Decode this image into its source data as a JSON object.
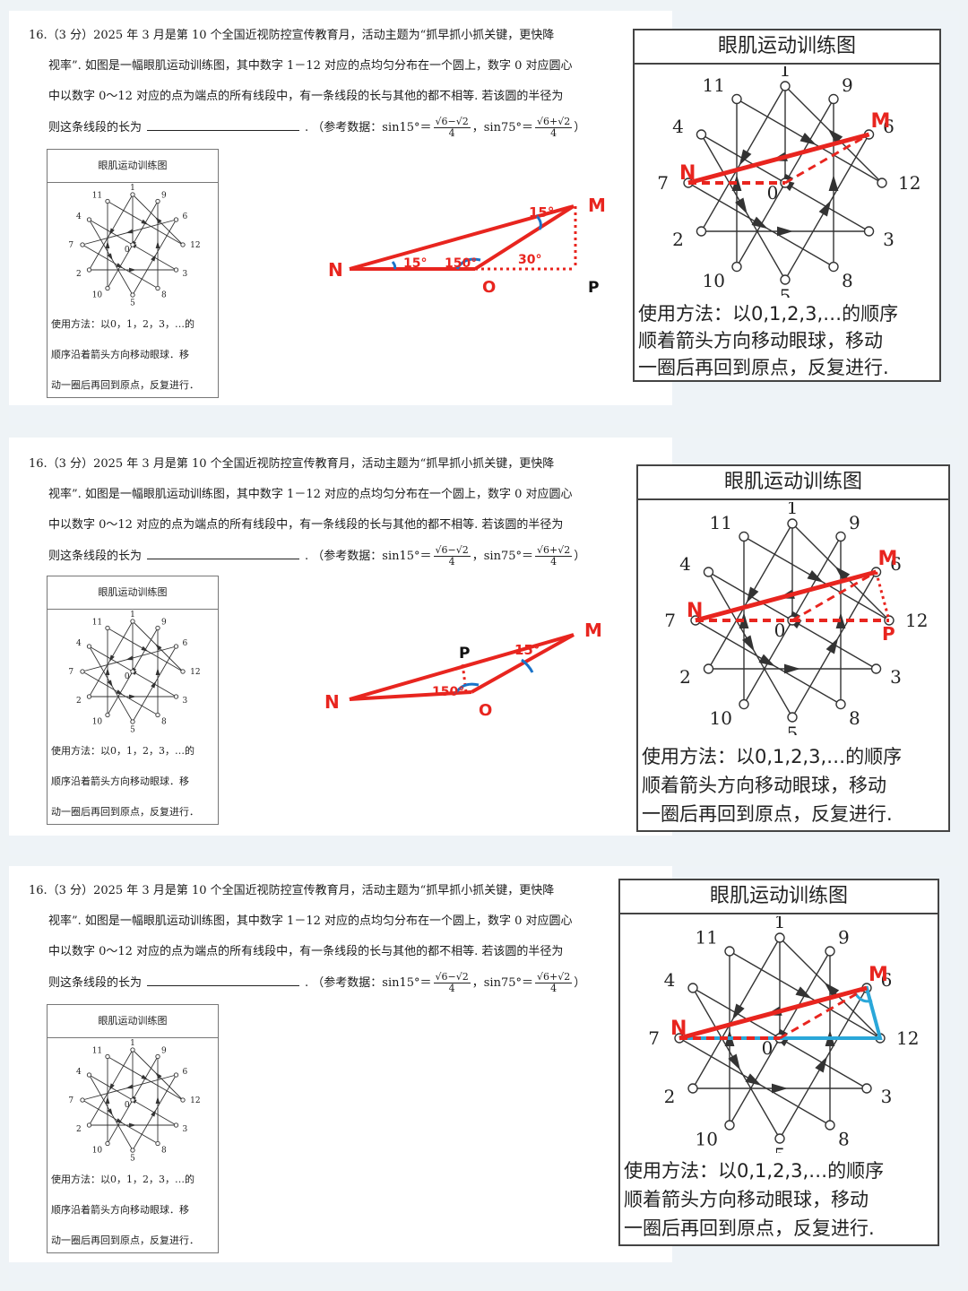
{
  "question": {
    "line1": "16.（3 分）2025 年 3 月是第 10 个全国近视防控宣传教育月，活动主题为“抓早抓小抓关键，更快降",
    "line2": "视率”. 如图是一幅眼肌运动训练图，其中数字 1－12 对应的点均匀分布在一个圆上，数字 0 对应圆心",
    "line3": "中以数字 0～12 对应的点为端点的所有线段中，有一条线段的长与其他的都不相等. 若该圆的半径为",
    "line4_prefix": "则这条线段的长为",
    "ref_prefix": ". （参考数据：sin15°＝",
    "sin15_num": "√6−√2",
    "sin15_den": "4",
    "sep": "，sin75°＝",
    "sin75_num": "√6+√2",
    "sin75_den": "4",
    "ref_suffix": "）"
  },
  "card": {
    "title": "眼肌运动训练图",
    "usage_line1": "使用方法：以0，1，2，3，…的",
    "usage_line2": "顺序沿着箭头方向移动眼球．移",
    "usage_line3": "动一圈后再回到原点，反复进行．"
  },
  "big_card": {
    "title": "眼肌运动训练图",
    "usage_line1": "使用方法：以0,1,2,3,…的顺序",
    "usage_line2": "顺着箭头方向移动眼球，移动",
    "usage_line3": "一圈后再回到原点，反复进行."
  },
  "figure_labels": {
    "N": "N",
    "M": "M",
    "O": "O",
    "P": "P",
    "angle15": "15°",
    "angle150": "150°",
    "angle30": "30°"
  },
  "point_labels": [
    "0",
    "1",
    "2",
    "3",
    "4",
    "5",
    "6",
    "7",
    "8",
    "9",
    "10",
    "11",
    "12"
  ],
  "colors": {
    "construction_red": "#e8251f",
    "angle_blue": "#1a73c8",
    "cyan_line": "#2aa7d9"
  }
}
